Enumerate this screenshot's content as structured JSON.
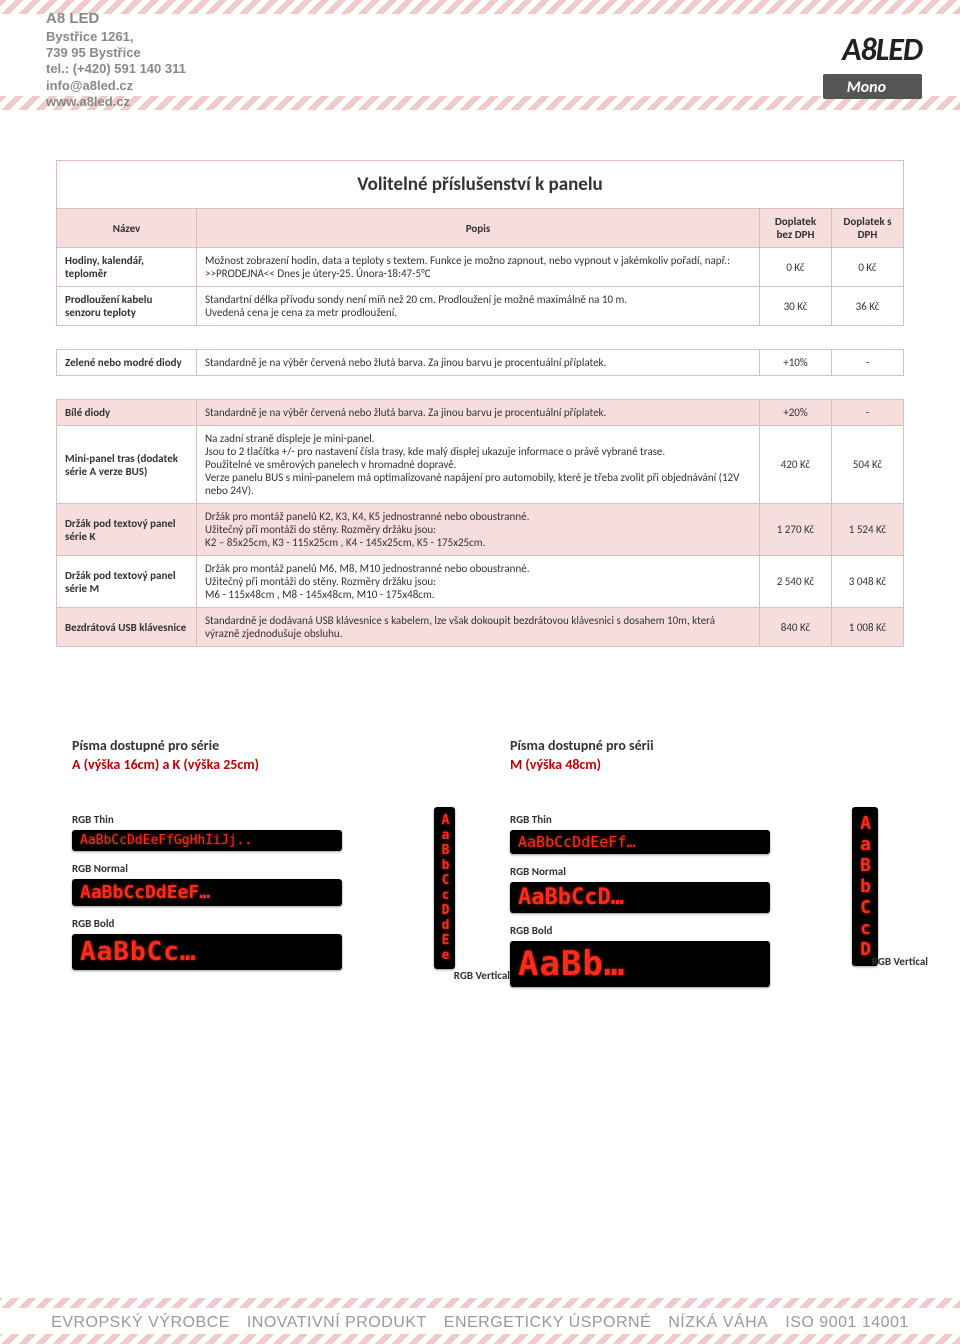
{
  "header": {
    "company": "A8 LED",
    "address1": "Bystřice 1261,",
    "address2": "739 95 Bystřice",
    "tel": "tel.: (+420) 591 140 311",
    "email": "info@a8led.cz",
    "web": "www.a8led.cz",
    "logo": "A8LED",
    "mono": "Mono"
  },
  "table": {
    "title": "Volitelné příslušenství k panelu",
    "col_name": "Název",
    "col_desc": "Popis",
    "col_price_ex": "Doplatek bez DPH",
    "col_price_in": "Doplatek s DPH",
    "rows": [
      {
        "name": "Hodiny, kalendář, teploměr",
        "desc": "Možnost zobrazení hodin, data a teploty s textem. Funkce je možno zapnout, nebo vypnout v jakémkoliv pořadí, např.:\n>>PRODEJNA<< Dnes je útery-25. Února-18:47-5°C",
        "ex": "0 Kč",
        "in": "0 Kč",
        "shade": false
      },
      {
        "name": "Prodloužení kabelu senzoru teploty",
        "desc": "Standartní délka přívodu sondy není míň než 20 cm. Prodloužení je možné maximálně na 10 m.\nUvedená cena je cena za metr prodloužení.",
        "ex": "30 Kč",
        "in": "36 Kč",
        "shade": false,
        "gapAfter": true
      },
      {
        "name": "Zelené nebo modré diody",
        "desc": "Standardně je na výběr červená nebo žlutá barva. Za jinou barvu je procentuální příplatek.",
        "ex": "+10%",
        "in": "-",
        "shade": false,
        "gapAfter": true
      },
      {
        "name": "Bílé diody",
        "desc": "Standardně je na výběr červená nebo žlutá barva. Za jinou barvu je procentuální příplatek.",
        "ex": "+20%",
        "in": "-",
        "shade": true
      },
      {
        "name": "Mini-panel tras (dodatek série A verze BUS)",
        "desc": "Na zadní straně displeje je mini-panel.\nJsou to 2 tlačítka +/- pro nastavení čísla trasy, kde malý displej ukazuje informace o právě vybrané trase.\nPoužitelné ve směrových panelech v hromadné dopravě.\nVerze panelu BUS s mini-panelem má optimalizované napájení pro automobily, které je třeba zvolit při objednávání (12V nebo 24V).",
        "ex": "420 Kč",
        "in": "504 Kč",
        "shade": false
      },
      {
        "name": "Držák pod textový panel série K",
        "desc": "Držák pro montáž panelů K2, K3, K4, K5 jednostranné nebo oboustranné.\nUžitečný při montáži do stěny. Rozměry držáku jsou:\nK2 – 85x25cm, K3 - 115x25cm , K4 - 145x25cm, K5 - 175x25cm.",
        "ex": "1 270 Kč",
        "in": "1 524 Kč",
        "shade": true
      },
      {
        "name": "Držák pod textový panel série M",
        "desc": "Držák pro montáž panelů M6, M8, M10  jednostranné nebo oboustranné.\nUžitečný při montáži do stěny. Rozměry držáku jsou:\nM6 - 115x48cm , M8 - 145x48cm, M10 - 175x48cm.",
        "ex": "2 540 Kč",
        "in": "3 048 Kč",
        "shade": false
      },
      {
        "name": "Bezdrátová USB klávesnice",
        "desc": "Standardně je dodávaná USB klávesnice s kabelem, lze však dokoupit bezdrátovou klávesnici s dosahem 10m, která výrazně zjednodušuje obsluhu.",
        "ex": "840 Kč",
        "in": "1 008 Kč",
        "shade": true
      }
    ]
  },
  "fonts": {
    "left_title": "Písma dostupné pro série",
    "left_sub": "A (výška 16cm) a K (výška 25cm)",
    "right_title": "Písma dostupné pro sérii",
    "right_sub": "M (výška 48cm)",
    "labels": {
      "thin": "RGB Thin",
      "normal": "RGB Normal",
      "bold": "RGB Bold",
      "vertical": "RGB Vertical"
    },
    "samples": {
      "thin_l": "AaBbCcDdEeFfGgHhIiJj..",
      "normal_l": "AaBbCcDdEeF…",
      "bold_l": "AaBbCc…",
      "vertical_l": "AaBbCcDdEe",
      "thin_r": "AaBbCcDdEeFf…",
      "normal_r": "AaBbCcD…",
      "bold_r": "AaBb…",
      "vertical_r": "AaBbCcD"
    }
  },
  "footer": {
    "items": [
      "EVROPSKÝ VÝROBCE",
      "INOVATIVNÍ PRODUKT",
      "ENERGETICKY ÚSPORNÉ",
      "NÍZKÁ VÁHA",
      "ISO 9001 14001"
    ]
  }
}
